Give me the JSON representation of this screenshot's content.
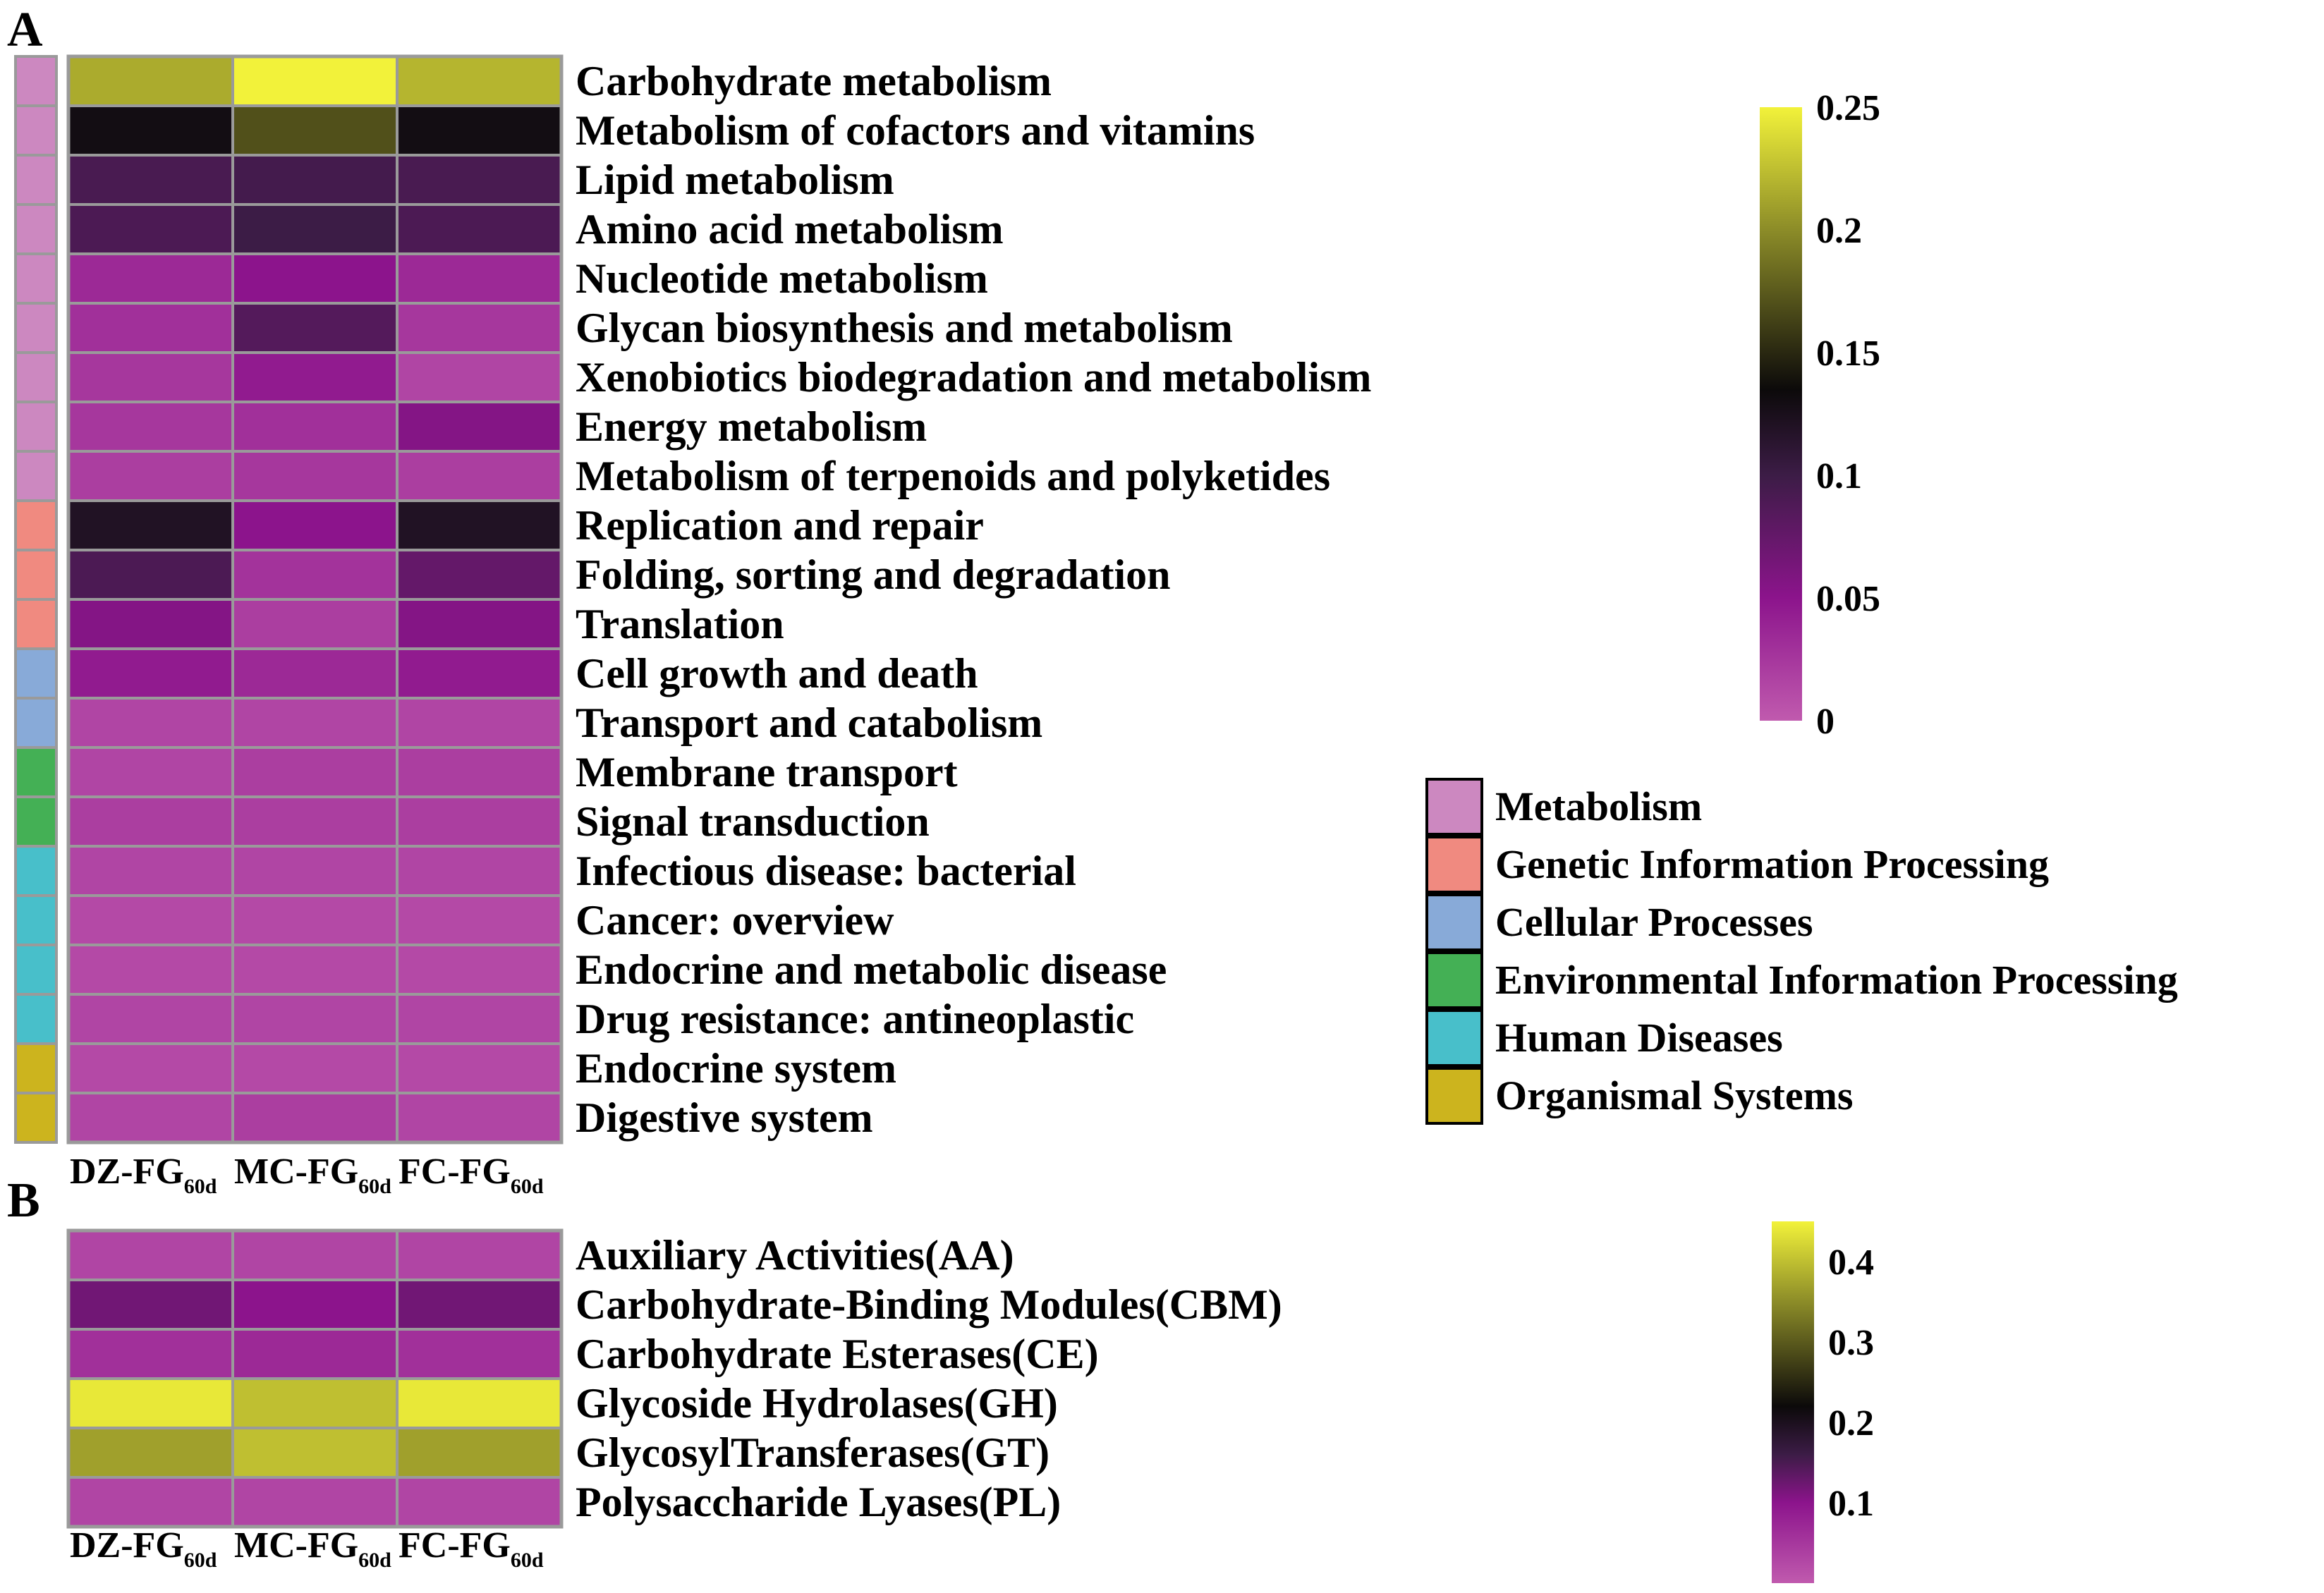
{
  "chart_data": [
    {
      "panel_label": "A",
      "type": "heatmap",
      "columns": [
        {
          "main": "DZ-FG",
          "sub": "60d"
        },
        {
          "main": "MC-FG",
          "sub": "60d"
        },
        {
          "main": "FC-FG",
          "sub": "60d"
        }
      ],
      "rows": [
        {
          "label": "Carbohydrate metabolism",
          "category": "Metabolism",
          "values": [
            0.215,
            0.25,
            0.22
          ]
        },
        {
          "label": "Metabolism of cofactors and vitamins",
          "category": "Metabolism",
          "values": [
            0.13,
            0.17,
            0.13
          ]
        },
        {
          "label": "Lipid metabolism",
          "category": "Metabolism",
          "values": [
            0.092,
            0.095,
            0.092
          ]
        },
        {
          "label": "Amino acid metabolism",
          "category": "Metabolism",
          "values": [
            0.09,
            0.1,
            0.09
          ]
        },
        {
          "label": "Nucleotide metabolism",
          "category": "Metabolism",
          "values": [
            0.035,
            0.05,
            0.035
          ]
        },
        {
          "label": "Glycan biosynthesis and metabolism",
          "category": "Metabolism",
          "values": [
            0.03,
            0.085,
            0.025
          ]
        },
        {
          "label": "Xenobiotics biodegradation and metabolism",
          "category": "Metabolism",
          "values": [
            0.025,
            0.045,
            0.015
          ]
        },
        {
          "label": "Energy metabolism",
          "category": "Metabolism",
          "values": [
            0.025,
            0.03,
            0.055
          ]
        },
        {
          "label": "Metabolism of terpenoids and polyketides",
          "category": "Metabolism",
          "values": [
            0.02,
            0.025,
            0.02
          ]
        },
        {
          "label": "Replication and repair",
          "category": "Genetic Information Processing",
          "values": [
            0.12,
            0.05,
            0.12
          ]
        },
        {
          "label": "Folding, sorting and degradation",
          "category": "Genetic Information Processing",
          "values": [
            0.09,
            0.028,
            0.075
          ]
        },
        {
          "label": "Translation",
          "category": "Genetic Information Processing",
          "values": [
            0.055,
            0.02,
            0.055
          ]
        },
        {
          "label": "Cell growth and death",
          "category": "Cellular Processes",
          "values": [
            0.045,
            0.035,
            0.045
          ]
        },
        {
          "label": "Transport and catabolism",
          "category": "Cellular Processes",
          "values": [
            0.015,
            0.015,
            0.015
          ]
        },
        {
          "label": "Membrane transport",
          "category": "Environmental Information Processing",
          "values": [
            0.015,
            0.02,
            0.02
          ]
        },
        {
          "label": "Signal transduction",
          "category": "Environmental Information Processing",
          "values": [
            0.02,
            0.02,
            0.02
          ]
        },
        {
          "label": "Infectious disease: bacterial",
          "category": "Human Diseases",
          "values": [
            0.015,
            0.015,
            0.015
          ]
        },
        {
          "label": "Cancer: overview",
          "category": "Human Diseases",
          "values": [
            0.012,
            0.012,
            0.012
          ]
        },
        {
          "label": "Endocrine and metabolic disease",
          "category": "Human Diseases",
          "values": [
            0.012,
            0.012,
            0.012
          ]
        },
        {
          "label": "Drug resistance: antineoplastic",
          "category": "Human Diseases",
          "values": [
            0.015,
            0.015,
            0.015
          ]
        },
        {
          "label": "Endocrine system",
          "category": "Organismal Systems",
          "values": [
            0.012,
            0.012,
            0.012
          ]
        },
        {
          "label": "Digestive system",
          "category": "Organismal Systems",
          "values": [
            0.015,
            0.02,
            0.015
          ]
        }
      ],
      "color_scale": {
        "min": 0,
        "max": 0.25,
        "stops": [
          {
            "value": 0,
            "color": "#c05aae"
          },
          {
            "value": 0.05,
            "color": "#8c148c"
          },
          {
            "value": 0.1,
            "color": "#3c1c46"
          },
          {
            "value": 0.135,
            "color": "#0c0a0a"
          },
          {
            "value": 0.2,
            "color": "#8c8c28"
          },
          {
            "value": 0.25,
            "color": "#f2f23a"
          }
        ],
        "ticks": [
          "0",
          "0.05",
          "0.1",
          "0.15",
          "0.2",
          "0.25"
        ]
      },
      "legend": [
        {
          "label": "Metabolism",
          "color": "#cc88c0"
        },
        {
          "label": "Genetic Information Processing",
          "color": "#f08a80"
        },
        {
          "label": "Cellular Processes",
          "color": "#88aad8"
        },
        {
          "label": "Environmental Information Processing",
          "color": "#44b055"
        },
        {
          "label": "Human Diseases",
          "color": "#48bfca"
        },
        {
          "label": "Organismal Systems",
          "color": "#ccb41e"
        }
      ]
    },
    {
      "panel_label": "B",
      "type": "heatmap",
      "columns": [
        {
          "main": "DZ-FG",
          "sub": "60d"
        },
        {
          "main": "MC-FG",
          "sub": "60d"
        },
        {
          "main": "FC-FG",
          "sub": "60d"
        }
      ],
      "rows": [
        {
          "label": "Auxiliary Activities(AA)",
          "values": [
            0.03,
            0.03,
            0.03
          ]
        },
        {
          "label": "Carbohydrate-Binding Modules(CBM)",
          "values": [
            0.12,
            0.1,
            0.12
          ]
        },
        {
          "label": "Carbohydrate Esterases(CE)",
          "values": [
            0.06,
            0.07,
            0.06
          ]
        },
        {
          "label": "Glycoside Hydrolases(GH)",
          "values": [
            0.44,
            0.4,
            0.44
          ]
        },
        {
          "label": "GlycosylTransferases(GT)",
          "values": [
            0.37,
            0.4,
            0.37
          ]
        },
        {
          "label": "Polysaccharide Lyases(PL)",
          "values": [
            0.03,
            0.03,
            0.03
          ]
        }
      ],
      "color_scale": {
        "min": 0,
        "max": 0.45,
        "stops": [
          {
            "value": 0,
            "color": "#c05aae"
          },
          {
            "value": 0.1,
            "color": "#8c148c"
          },
          {
            "value": 0.16,
            "color": "#3c1c46"
          },
          {
            "value": 0.22,
            "color": "#0c0a0a"
          },
          {
            "value": 0.35,
            "color": "#8c8c28"
          },
          {
            "value": 0.45,
            "color": "#f2f23a"
          }
        ],
        "ticks": [
          "0.1",
          "0.2",
          "0.3",
          "0.4"
        ]
      }
    }
  ]
}
